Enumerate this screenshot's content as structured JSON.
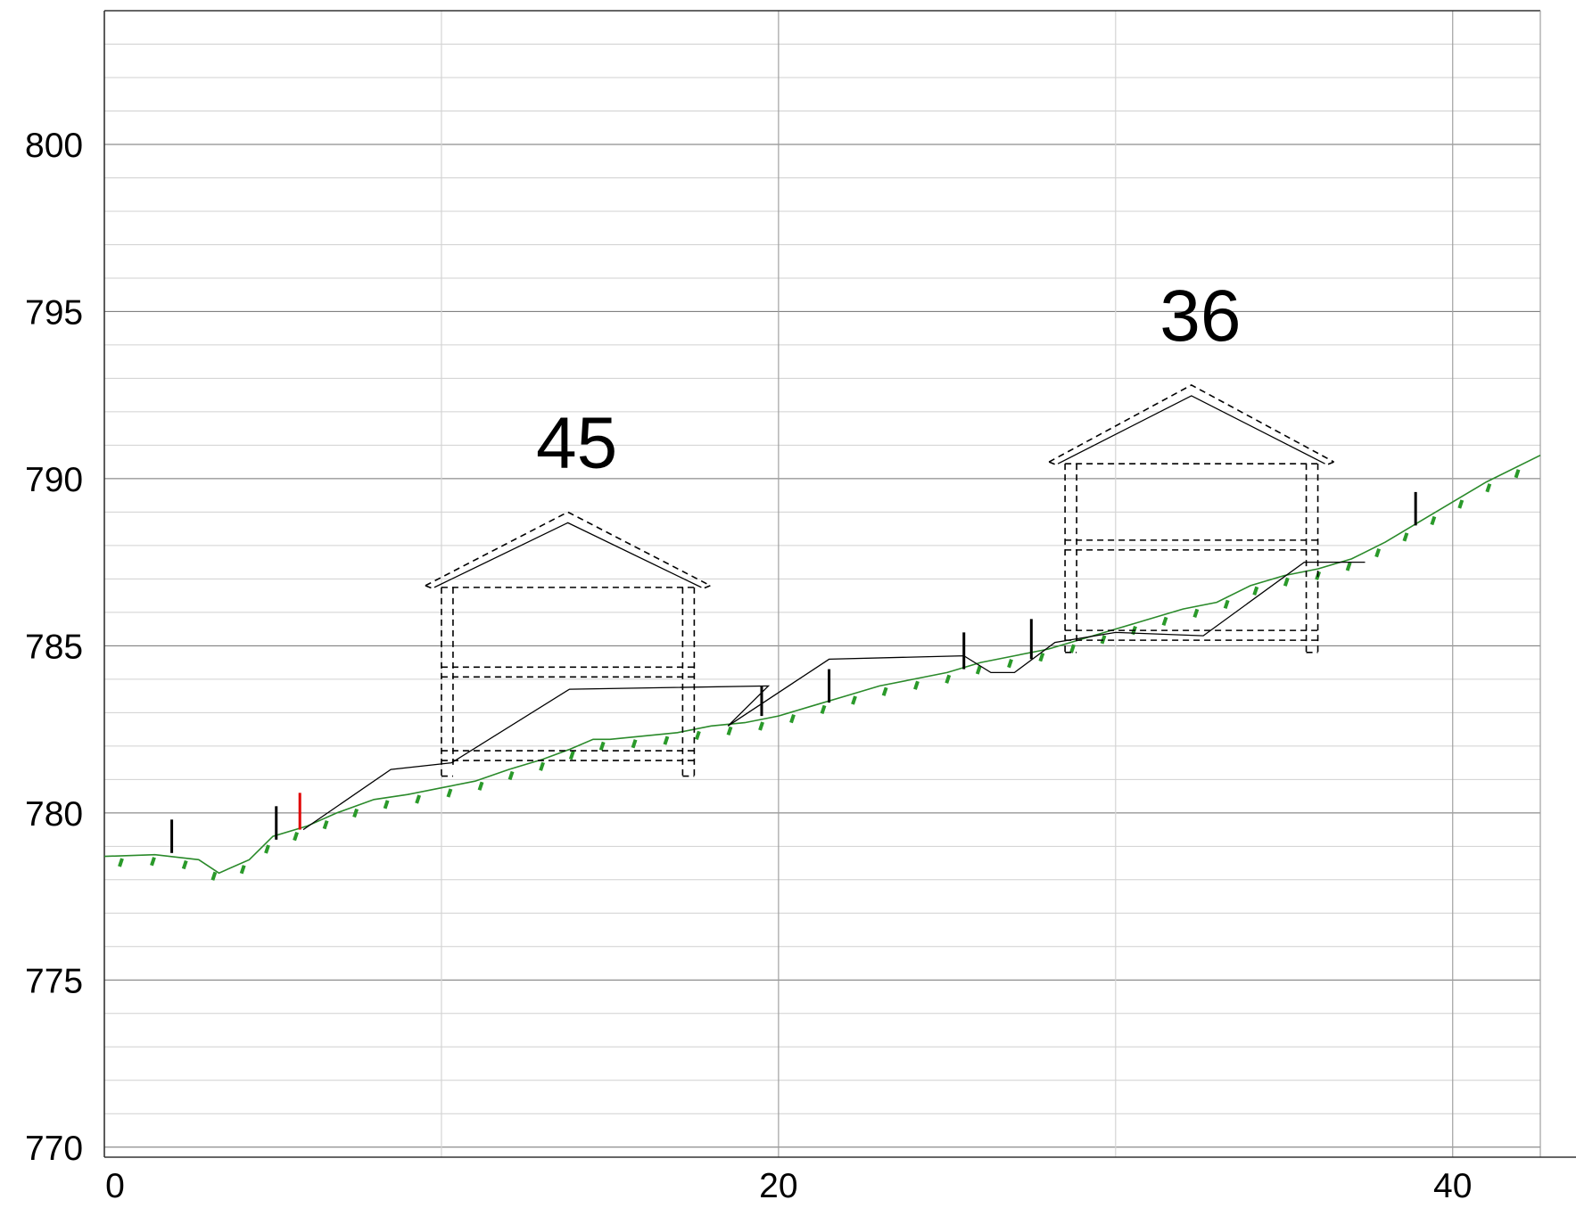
{
  "chart_data": {
    "type": "profile-section",
    "xlim": [
      0,
      42.6
    ],
    "ylim": [
      769.7,
      804
    ],
    "x_ticks": [
      0,
      20,
      40
    ],
    "y_ticks": [
      770,
      775,
      780,
      785,
      790,
      795,
      800
    ],
    "x_minor_gridlines": [
      10,
      30
    ],
    "y_minor_step": 1,
    "grid": true,
    "colors": {
      "terrain": "#2a8a2a",
      "red_marker": "#e00000",
      "black_marker": "#000000",
      "planned": "#000000"
    },
    "terrain_line": [
      [
        0,
        778.7
      ],
      [
        1.5,
        778.75
      ],
      [
        2.8,
        778.6
      ],
      [
        3.4,
        778.2
      ],
      [
        4.3,
        778.6
      ],
      [
        5.0,
        779.3
      ],
      [
        6.0,
        779.6
      ],
      [
        6.9,
        780.0
      ],
      [
        8.0,
        780.4
      ],
      [
        9.0,
        780.55
      ],
      [
        10.0,
        780.75
      ],
      [
        11.0,
        780.95
      ],
      [
        12.0,
        781.3
      ],
      [
        13.0,
        781.6
      ],
      [
        13.8,
        781.9
      ],
      [
        14.5,
        782.2
      ],
      [
        15.0,
        782.2
      ],
      [
        16.0,
        782.3
      ],
      [
        17.0,
        782.4
      ],
      [
        18.0,
        782.6
      ],
      [
        19.0,
        782.7
      ],
      [
        20.0,
        782.9
      ],
      [
        21.0,
        783.2
      ],
      [
        22.0,
        783.5
      ],
      [
        23.0,
        783.8
      ],
      [
        24.0,
        784.0
      ],
      [
        25.0,
        784.2
      ],
      [
        26.0,
        784.5
      ],
      [
        27.0,
        784.7
      ],
      [
        28.0,
        784.9
      ],
      [
        29.0,
        785.2
      ],
      [
        30.0,
        785.5
      ],
      [
        31.0,
        785.8
      ],
      [
        32.0,
        786.1
      ],
      [
        33.0,
        786.3
      ],
      [
        34.0,
        786.8
      ],
      [
        35.0,
        787.1
      ],
      [
        36.0,
        787.3
      ],
      [
        37.0,
        787.6
      ],
      [
        38.0,
        788.1
      ],
      [
        39.0,
        788.7
      ],
      [
        40.0,
        789.3
      ],
      [
        41.0,
        789.9
      ],
      [
        42.6,
        790.7
      ]
    ],
    "planned_line": [
      [
        5.9,
        779.5
      ],
      [
        8.5,
        781.3
      ],
      [
        10.3,
        781.5
      ],
      [
        13.8,
        783.7
      ],
      [
        19.7,
        783.8
      ],
      [
        18.5,
        782.6
      ],
      [
        21.5,
        784.6
      ],
      [
        25.5,
        784.7
      ],
      [
        26.3,
        784.2
      ],
      [
        27.0,
        784.2
      ],
      [
        28.2,
        785.1
      ],
      [
        30.0,
        785.4
      ],
      [
        32.6,
        785.3
      ],
      [
        35.6,
        787.5
      ],
      [
        37.4,
        787.5
      ]
    ],
    "markers_black": [
      [
        2.0,
        778.8,
        779.8
      ],
      [
        5.1,
        779.2,
        780.2
      ],
      [
        19.5,
        782.9,
        783.8
      ],
      [
        21.5,
        783.3,
        784.3
      ],
      [
        25.5,
        784.3,
        785.4
      ],
      [
        27.5,
        784.6,
        785.8
      ],
      [
        38.9,
        788.6,
        789.6
      ]
    ],
    "markers_red": [
      [
        5.8,
        779.5,
        780.6
      ]
    ],
    "buildings": [
      {
        "label": "45",
        "x_left": 10.0,
        "x_right": 17.5,
        "roof_peak_y": 789.0,
        "eave_y": 786.8,
        "floor_ys": [
          784.2,
          781.7
        ],
        "footing_bottom_y": 781.1
      },
      {
        "label": "36",
        "x_left": 28.5,
        "x_right": 36.0,
        "roof_peak_y": 792.8,
        "eave_y": 790.5,
        "floor_ys": [
          788.0,
          785.3
        ],
        "footing_bottom_y": 784.8
      }
    ]
  }
}
